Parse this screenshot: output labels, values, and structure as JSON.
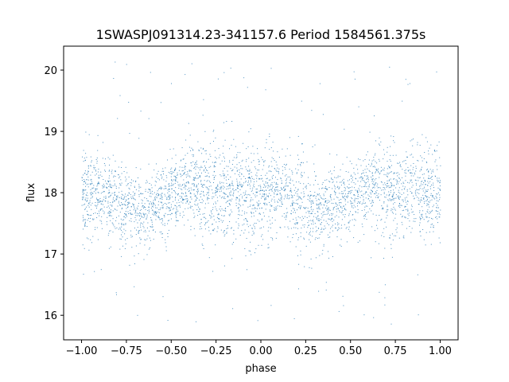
{
  "chart_data": {
    "type": "scatter",
    "title": "1SWASPJ091314.23-341157.6 Period 1584561.375s",
    "xlabel": "phase",
    "ylabel": "flux",
    "xlim": [
      -1.1,
      1.1
    ],
    "ylim": [
      15.6,
      20.39
    ],
    "xticks": [
      -1.0,
      -0.75,
      -0.5,
      -0.25,
      0.0,
      0.25,
      0.5,
      0.75,
      1.0
    ],
    "xtick_labels": [
      "−1.00",
      "−0.75",
      "−0.50",
      "−0.25",
      "0.00",
      "0.25",
      "0.50",
      "0.75",
      "1.00"
    ],
    "yticks": [
      16,
      17,
      18,
      19,
      20
    ],
    "ytick_labels": [
      "16",
      "17",
      "18",
      "19",
      "20"
    ],
    "grid": false,
    "marker_color": "#1f77b4",
    "series_summary": {
      "note": "dense scatter of several thousand points; phase-folded light curve repeated over two cycles",
      "phase_bins": [
        0.0,
        0.05,
        0.1,
        0.15,
        0.2,
        0.25,
        0.3,
        0.35,
        0.4,
        0.45,
        0.5,
        0.55,
        0.6,
        0.65,
        0.7,
        0.75,
        0.8,
        0.85,
        0.9,
        0.95
      ],
      "mean_flux": [
        18.0,
        18.0,
        17.95,
        17.85,
        17.8,
        17.75,
        17.7,
        17.75,
        17.85,
        17.9,
        18.0,
        18.05,
        18.1,
        18.05,
        18.0,
        18.0,
        18.0,
        18.0,
        17.95,
        18.0
      ],
      "spread": [
        0.35,
        0.35,
        0.35,
        0.35,
        0.4,
        0.35,
        0.3,
        0.3,
        0.3,
        0.3,
        0.3,
        0.3,
        0.35,
        0.45,
        0.4,
        0.35,
        0.35,
        0.35,
        0.4,
        0.35
      ],
      "flux_range": [
        15.85,
        20.15
      ]
    }
  }
}
